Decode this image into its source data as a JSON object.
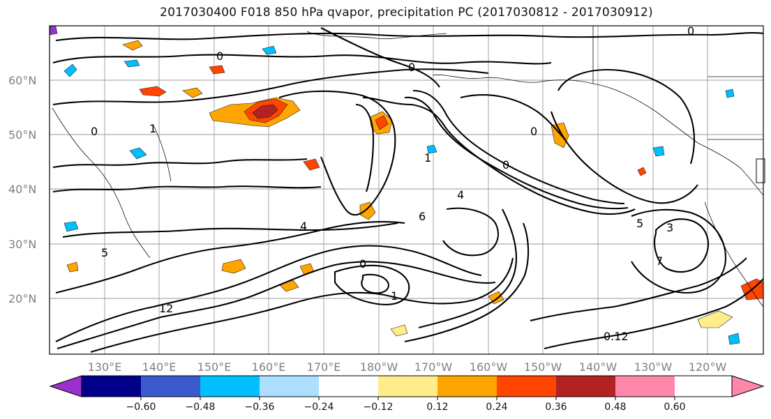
{
  "title": "2017030400 F018 850 hPa qvapor, precipitation PC (2017030812 - 2017030912)",
  "map": {
    "lat_labels": [
      "60°N",
      "50°N",
      "40°N",
      "30°N",
      "20°N"
    ],
    "lon_labels": [
      "130°E",
      "140°E",
      "150°E",
      "160°E",
      "170°E",
      "180°W",
      "170°W",
      "160°W",
      "150°W",
      "140°W",
      "130°W",
      "120°W"
    ],
    "contour_labels": [
      "0",
      "1",
      "4",
      "3",
      "5",
      "6",
      "7",
      "12",
      "0.12"
    ]
  },
  "colorbar": {
    "ticks": [
      "−0.60",
      "−0.48",
      "−0.36",
      "−0.24",
      "−0.12",
      "0.12",
      "0.24",
      "0.36",
      "0.48",
      "0.60"
    ],
    "colors": [
      "#9932CC",
      "#00008B",
      "#3A5BCD",
      "#00BFFF",
      "#ADE0FF",
      "#FFFFFF",
      "#FFEC8B",
      "#FFA500",
      "#FF4500",
      "#B22222",
      "#FF88AA"
    ]
  }
}
